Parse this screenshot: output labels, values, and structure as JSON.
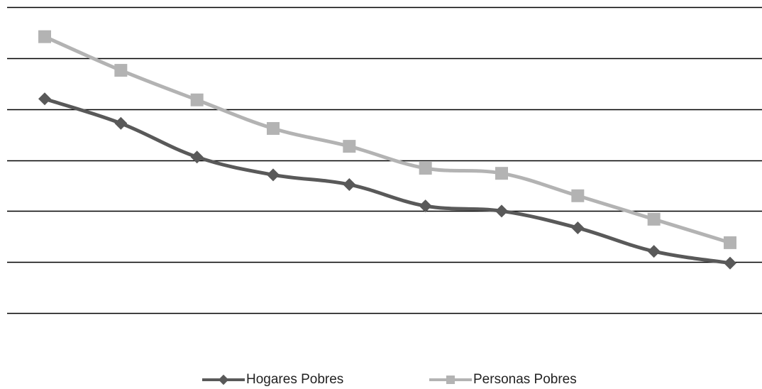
{
  "chart_data": {
    "type": "line",
    "title": "",
    "xlabel": "",
    "ylabel": "",
    "categories": [
      "",
      "",
      "",
      "",
      "",
      "",
      "",
      "",
      "",
      ""
    ],
    "ylim": [
      0,
      6
    ],
    "grid": true,
    "legend_placement": "bottom",
    "series": [
      {
        "name": "Hogares Pobres",
        "color": "#595959",
        "marker": "diamond",
        "values": [
          4.2,
          3.72,
          3.06,
          2.71,
          2.52,
          2.1,
          2.0,
          1.67,
          1.21,
          0.98
        ]
      },
      {
        "name": "Personas Pobres",
        "color": "#b3b3b3",
        "marker": "square",
        "values": [
          5.42,
          4.76,
          4.18,
          3.62,
          3.27,
          2.84,
          2.74,
          2.3,
          1.84,
          1.38
        ]
      }
    ]
  }
}
